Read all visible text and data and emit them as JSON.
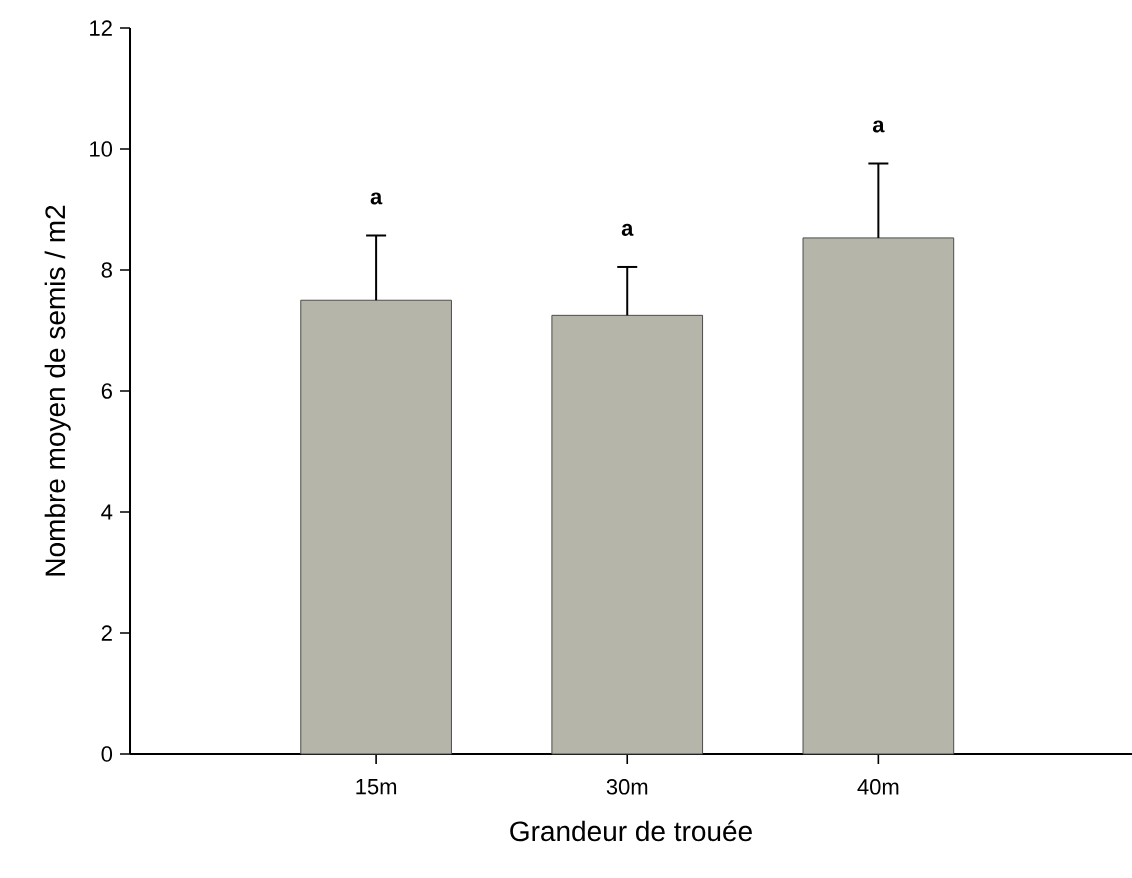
{
  "chart_data": {
    "type": "bar",
    "xlabel": "Grandeur de trouée",
    "ylabel": "Nombre moyen de semis / m2",
    "categories": [
      "15m",
      "30m",
      "40m"
    ],
    "values": [
      7.5,
      7.25,
      8.53
    ],
    "errors": [
      [
        7.5,
        8.57
      ],
      [
        7.25,
        8.05
      ],
      [
        8.53,
        9.76
      ]
    ],
    "color": "#b5b5a9",
    "ylim": [
      0,
      12
    ],
    "yticks": [
      0,
      2,
      4,
      6,
      8,
      10,
      12
    ],
    "grid": false,
    "annotations": [
      "a",
      "a",
      "a"
    ]
  }
}
